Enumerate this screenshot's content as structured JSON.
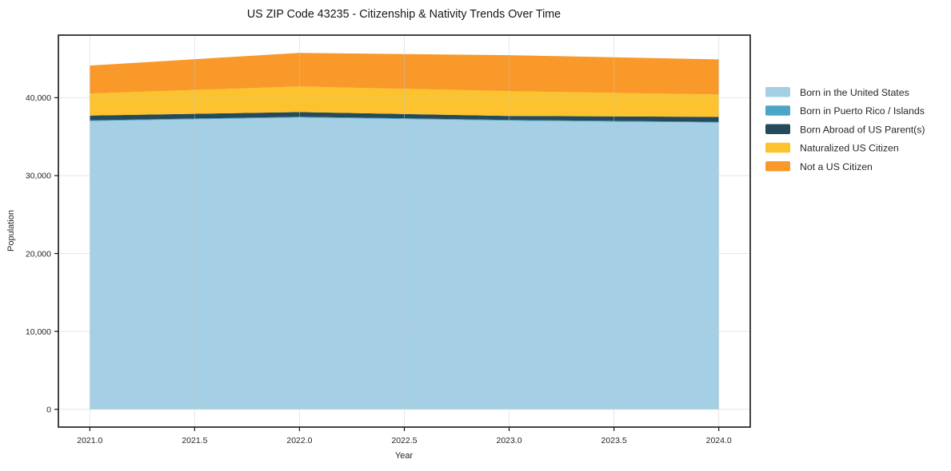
{
  "figure": {
    "background": "#ffffff",
    "frame_color": "#141414",
    "grid_color": "#c8c8c8",
    "text_color": "#262626"
  },
  "chart_data": {
    "type": "area",
    "stacked": true,
    "title": "US ZIP Code 43235 - Citizenship & Nativity Trends Over Time",
    "xlabel": "Year",
    "ylabel": "Population",
    "x": [
      2021,
      2022,
      2023,
      2024
    ],
    "series": [
      {
        "name": "Born in the United States",
        "color": "#a5cfe4",
        "values": [
          37000,
          37450,
          37050,
          36800
        ]
      },
      {
        "name": "Born in Puerto Rico / Islands",
        "color": "#4ba5c7",
        "values": [
          100,
          100,
          100,
          100
        ]
      },
      {
        "name": "Born Abroad of US Parent(s)",
        "color": "#254a5c",
        "values": [
          620,
          610,
          510,
          640
        ]
      },
      {
        "name": "Naturalized US Citizen",
        "color": "#fcc32f",
        "values": [
          2820,
          3290,
          3180,
          2870
        ]
      },
      {
        "name": "Not a US Citizen",
        "color": "#f8992a",
        "values": [
          3590,
          4300,
          4620,
          4510
        ]
      }
    ],
    "stack_totals": [
      44130,
      45750,
      45460,
      44920
    ],
    "xlim": [
      2020.85,
      2024.15
    ],
    "ylim": [
      -2287,
      48037
    ],
    "xticks": [
      2021.0,
      2021.5,
      2022.0,
      2022.5,
      2023.0,
      2023.5,
      2024.0
    ],
    "xtick_labels": [
      "2021.0",
      "2021.5",
      "2022.0",
      "2022.5",
      "2023.0",
      "2023.5",
      "2024.0"
    ],
    "yticks": [
      0,
      10000,
      20000,
      30000,
      40000
    ],
    "ytick_labels": [
      "0",
      "10,000",
      "20,000",
      "30,000",
      "40,000"
    ],
    "grid": true,
    "legend_position": "outside-right"
  }
}
